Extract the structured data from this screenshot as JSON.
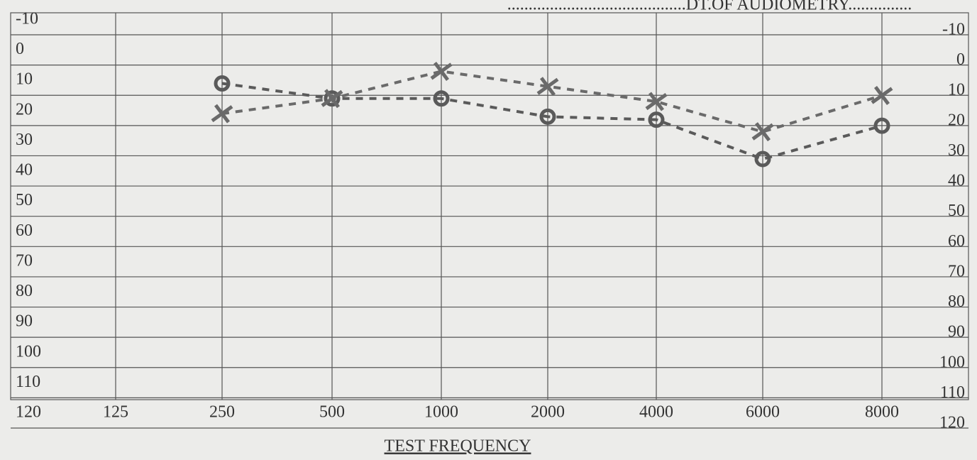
{
  "chart_data": {
    "type": "line",
    "title": "..........................................DT.OF AUDIOMETRY...............",
    "xlabel": "TEST FREQUENCY",
    "categories": [
      "125",
      "250",
      "500",
      "1000",
      "2000",
      "4000",
      "6000",
      "8000"
    ],
    "series": [
      {
        "marker": "o",
        "color": "#5a5a5a",
        "values": [
          null,
          11,
          16,
          16,
          22,
          23,
          36,
          25
        ]
      },
      {
        "marker": "x",
        "color": "#6a6a6a",
        "values": [
          null,
          21,
          16,
          7,
          12,
          17,
          27,
          15
        ]
      }
    ],
    "ylim": [
      -10,
      120
    ],
    "yticks": [
      -10,
      0,
      10,
      20,
      30,
      40,
      50,
      60,
      70,
      80,
      90,
      100,
      110,
      120
    ],
    "inverted": true,
    "grid": true
  }
}
